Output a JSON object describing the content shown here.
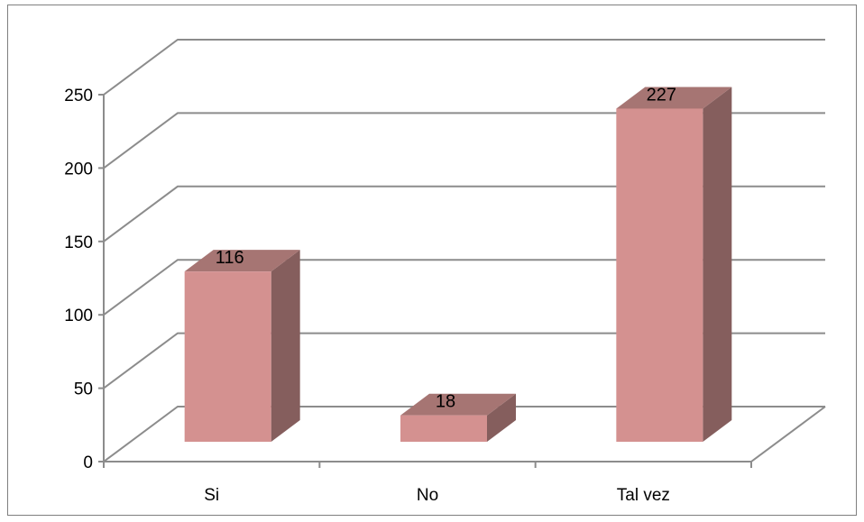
{
  "chart_data": {
    "type": "bar",
    "three_d": true,
    "categories": [
      "Si",
      "No",
      "Tal vez"
    ],
    "values": [
      116,
      18,
      227
    ],
    "data_labels": [
      "116",
      "18",
      "227"
    ],
    "title": "",
    "xlabel": "",
    "ylabel": "",
    "ylim": [
      0,
      250
    ],
    "yticks": [
      0,
      50,
      100,
      150,
      200,
      250
    ],
    "ytick_labels": [
      "0",
      "50",
      "100",
      "150",
      "200",
      "250"
    ],
    "grid": true,
    "legend": "none",
    "colors": {
      "bar_front": "#d49190",
      "bar_top": "#a67573",
      "bar_side": "#855e5d",
      "grid": "#8c8c8c",
      "frame": "#7f7f7f"
    }
  }
}
